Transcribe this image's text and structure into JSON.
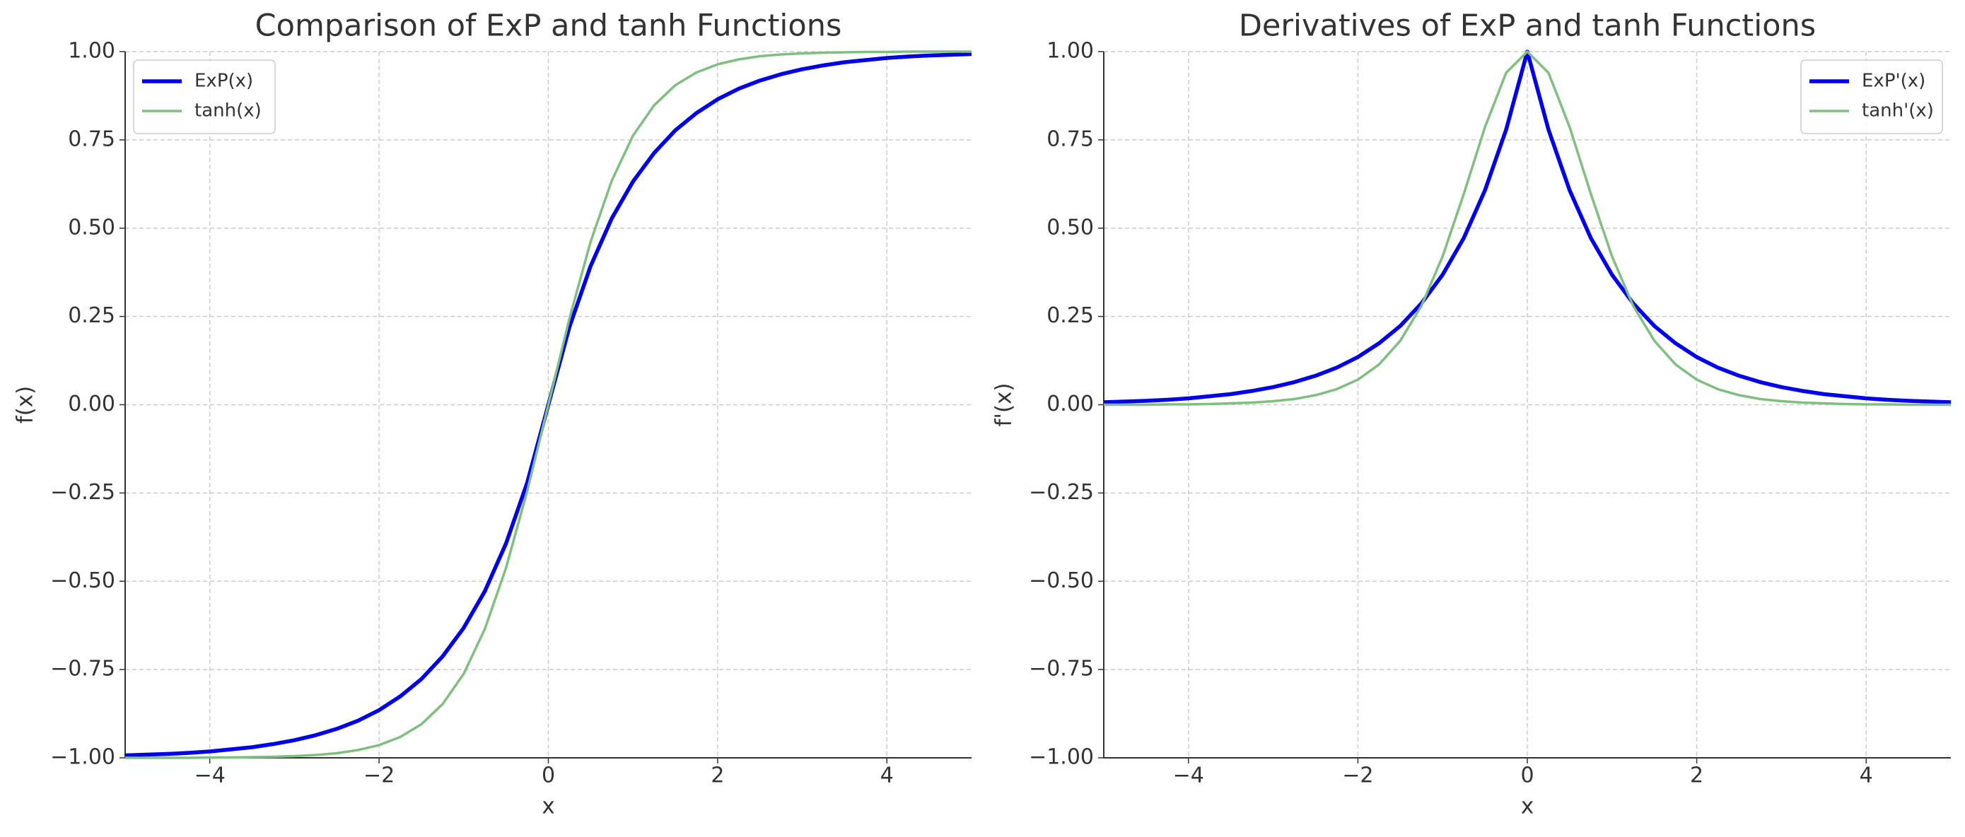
{
  "chart_data": [
    {
      "type": "line",
      "title": "Comparison of ExP and tanh Functions",
      "xlabel": "x",
      "ylabel": "f(x)",
      "x": [
        -5,
        -4.75,
        -4.5,
        -4.25,
        -4,
        -3.75,
        -3.5,
        -3.25,
        -3,
        -2.75,
        -2.5,
        -2.25,
        -2,
        -1.75,
        -1.5,
        -1.25,
        -1,
        -0.75,
        -0.5,
        -0.25,
        0,
        0.25,
        0.5,
        0.75,
        1,
        1.25,
        1.5,
        1.75,
        2,
        2.25,
        2.5,
        2.75,
        3,
        3.25,
        3.5,
        3.75,
        4,
        4.25,
        4.5,
        4.75,
        5
      ],
      "series": [
        {
          "name": "ExP(x)",
          "color": "#0000ee",
          "values": [
            -0.993,
            -0.991,
            -0.989,
            -0.986,
            -0.982,
            -0.976,
            -0.97,
            -0.961,
            -0.95,
            -0.936,
            -0.918,
            -0.895,
            -0.865,
            -0.826,
            -0.777,
            -0.713,
            -0.632,
            -0.528,
            -0.393,
            -0.221,
            0,
            0.221,
            0.393,
            0.528,
            0.632,
            0.713,
            0.777,
            0.826,
            0.865,
            0.895,
            0.918,
            0.936,
            0.95,
            0.961,
            0.97,
            0.976,
            0.982,
            0.986,
            0.989,
            0.991,
            0.993
          ]
        },
        {
          "name": "tanh(x)",
          "color": "#7fbf7f",
          "values": [
            -1.0,
            -1.0,
            -1.0,
            -1.0,
            -0.999,
            -0.999,
            -0.998,
            -0.997,
            -0.995,
            -0.992,
            -0.987,
            -0.978,
            -0.964,
            -0.941,
            -0.905,
            -0.848,
            -0.762,
            -0.635,
            -0.462,
            -0.245,
            0,
            0.245,
            0.462,
            0.635,
            0.762,
            0.848,
            0.905,
            0.941,
            0.964,
            0.978,
            0.987,
            0.992,
            0.995,
            0.997,
            0.998,
            0.999,
            0.999,
            1.0,
            1.0,
            1.0,
            1.0
          ]
        }
      ],
      "xlim": [
        -5,
        5
      ],
      "ylim": [
        -1,
        1
      ],
      "xticks": [
        {
          "value": -4,
          "label": "−4"
        },
        {
          "value": -2,
          "label": "−2"
        },
        0,
        2,
        4
      ],
      "yticks": [
        {
          "value": -1,
          "label": "−1.00"
        },
        {
          "value": -0.75,
          "label": "−0.75"
        },
        {
          "value": -0.5,
          "label": "−0.50"
        },
        {
          "value": -0.25,
          "label": "−0.25"
        },
        {
          "value": 0,
          "label": "0.00"
        },
        {
          "value": 0.25,
          "label": "0.25"
        },
        {
          "value": 0.5,
          "label": "0.50"
        },
        {
          "value": 0.75,
          "label": "0.75"
        },
        {
          "value": 1,
          "label": "1.00"
        }
      ],
      "grid": true,
      "legend": "upper left"
    },
    {
      "type": "line",
      "title": "Derivatives of ExP and tanh Functions",
      "xlabel": "x",
      "ylabel": "f'(x)",
      "x": [
        -5,
        -4.75,
        -4.5,
        -4.25,
        -4,
        -3.75,
        -3.5,
        -3.25,
        -3,
        -2.75,
        -2.5,
        -2.25,
        -2,
        -1.75,
        -1.5,
        -1.25,
        -1,
        -0.75,
        -0.5,
        -0.25,
        0,
        0.25,
        0.5,
        0.75,
        1,
        1.25,
        1.5,
        1.75,
        2,
        2.25,
        2.5,
        2.75,
        3,
        3.25,
        3.5,
        3.75,
        4,
        4.25,
        4.5,
        4.75,
        5
      ],
      "series": [
        {
          "name": "ExP'(x)",
          "color": "#0000ee",
          "values": [
            0.007,
            0.009,
            0.011,
            0.014,
            0.018,
            0.024,
            0.03,
            0.039,
            0.05,
            0.064,
            0.082,
            0.105,
            0.135,
            0.174,
            0.223,
            0.287,
            0.368,
            0.472,
            0.607,
            0.779,
            1,
            0.779,
            0.607,
            0.472,
            0.368,
            0.287,
            0.223,
            0.174,
            0.135,
            0.105,
            0.082,
            0.064,
            0.05,
            0.039,
            0.03,
            0.024,
            0.018,
            0.014,
            0.011,
            0.009,
            0.007
          ]
        },
        {
          "name": "tanh'(x)",
          "color": "#7fbf7f",
          "values": [
            0.0,
            0.0,
            0.0,
            0.001,
            0.001,
            0.002,
            0.004,
            0.006,
            0.01,
            0.016,
            0.027,
            0.044,
            0.071,
            0.114,
            0.181,
            0.28,
            0.42,
            0.597,
            0.786,
            0.94,
            1,
            0.94,
            0.786,
            0.597,
            0.42,
            0.28,
            0.181,
            0.114,
            0.071,
            0.044,
            0.027,
            0.016,
            0.01,
            0.006,
            0.004,
            0.002,
            0.001,
            0.001,
            0.0,
            0.0,
            0.0
          ]
        }
      ],
      "xlim": [
        -5,
        5
      ],
      "ylim": [
        -1,
        1
      ],
      "xticks": [
        {
          "value": -4,
          "label": "−4"
        },
        {
          "value": -2,
          "label": "−2"
        },
        0,
        2,
        4
      ],
      "yticks": [
        {
          "value": -1,
          "label": "−1.00"
        },
        {
          "value": -0.75,
          "label": "−0.75"
        },
        {
          "value": -0.5,
          "label": "−0.50"
        },
        {
          "value": -0.25,
          "label": "−0.25"
        },
        {
          "value": 0,
          "label": "0.00"
        },
        {
          "value": 0.25,
          "label": "0.25"
        },
        {
          "value": 0.5,
          "label": "0.50"
        },
        {
          "value": 0.75,
          "label": "0.75"
        },
        {
          "value": 1,
          "label": "1.00"
        }
      ],
      "grid": true,
      "legend": "upper right"
    }
  ]
}
